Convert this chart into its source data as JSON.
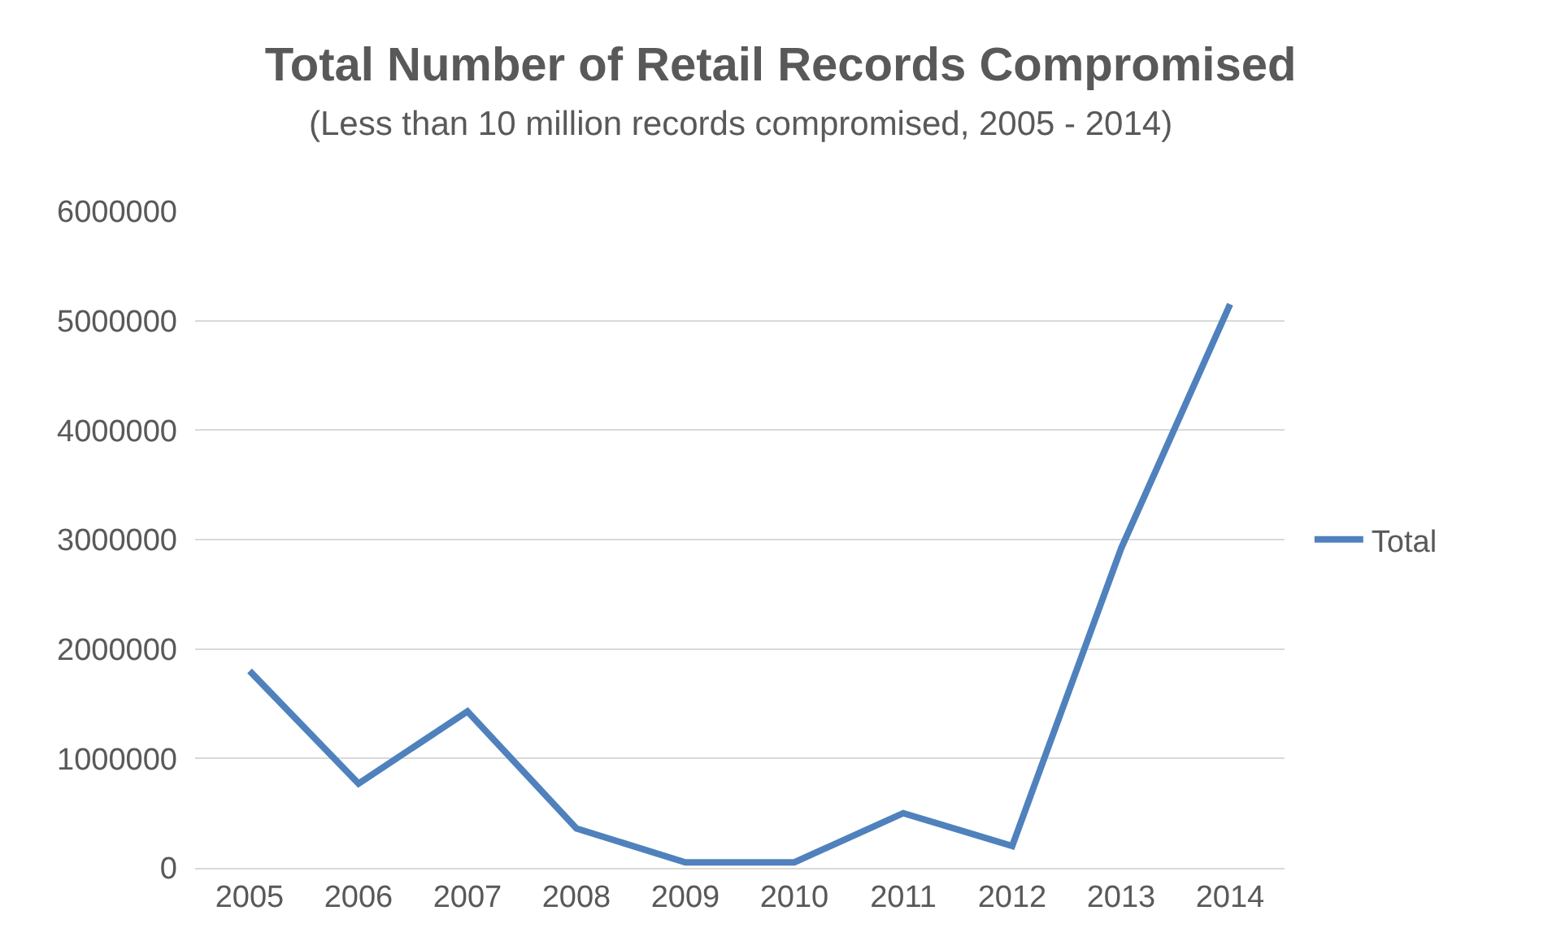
{
  "chart_data": {
    "type": "line",
    "title": "Total Number of Retail Records Compromised",
    "subtitle": "(Less than 10 million records compromised, 2005 - 2014)",
    "categories": [
      "2005",
      "2006",
      "2007",
      "2008",
      "2009",
      "2010",
      "2011",
      "2012",
      "2013",
      "2014"
    ],
    "series": [
      {
        "name": "Total",
        "color": "#4f81bd",
        "values": [
          1800000,
          770000,
          1430000,
          360000,
          50000,
          50000,
          500000,
          200000,
          2920000,
          5150000
        ]
      }
    ],
    "ylim": [
      0,
      6000000
    ],
    "yticks": [
      0,
      1000000,
      2000000,
      3000000,
      4000000,
      5000000,
      6000000
    ],
    "grid": "y",
    "legend": "right",
    "marker": "none",
    "line_style": "solid"
  }
}
